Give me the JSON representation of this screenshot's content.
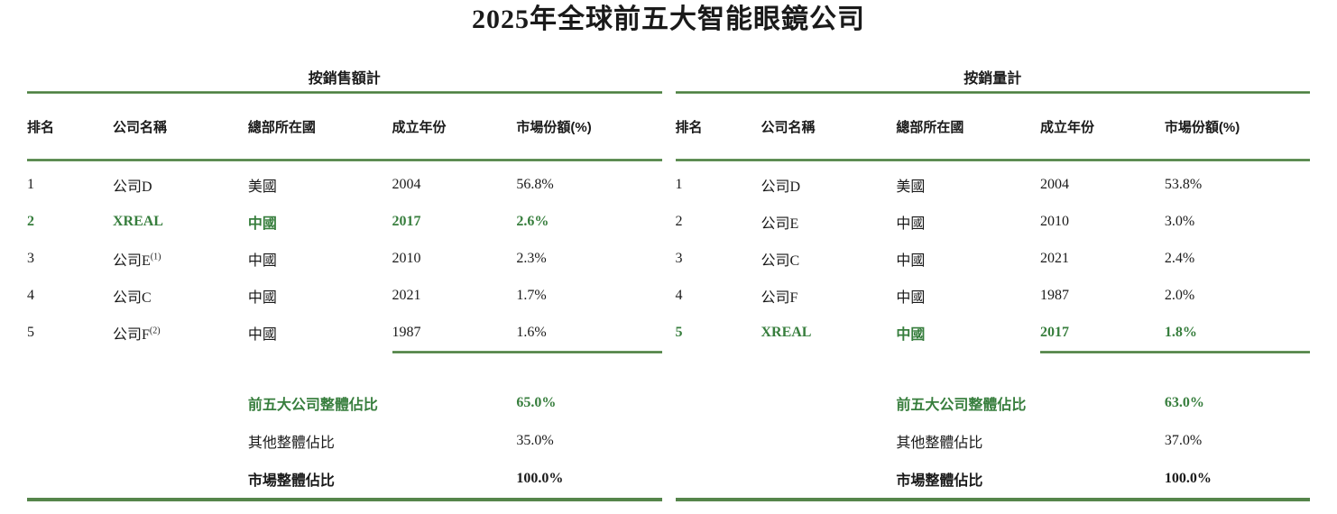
{
  "page": {
    "title": "2025年全球前五大智能眼鏡公司"
  },
  "colors": {
    "highlight_green": "#377e3d",
    "line_green": "#55854b"
  },
  "tables": [
    {
      "caption": "按銷售額計",
      "headers": {
        "rank": "排名",
        "company": "公司名稱",
        "country": "總部所在國",
        "year": "成立年份",
        "share": "市場份額(%)"
      },
      "rows": [
        {
          "rank": "1",
          "company": "公司D",
          "company_sup": "",
          "country": "美國",
          "year": "2004",
          "share": "56.8%"
        },
        {
          "rank": "2",
          "company": "XREAL",
          "company_sup": "",
          "country": "中國",
          "year": "2017",
          "share": "2.6%"
        },
        {
          "rank": "3",
          "company": "公司E",
          "company_sup": "(1)",
          "country": "中國",
          "year": "2010",
          "share": "2.3%"
        },
        {
          "rank": "4",
          "company": "公司C",
          "company_sup": "",
          "country": "中國",
          "year": "2021",
          "share": "1.7%"
        },
        {
          "rank": "5",
          "company": "公司F",
          "company_sup": "(2)",
          "country": "中國",
          "year": "1987",
          "share": "1.6%"
        }
      ],
      "summary": [
        {
          "label": "前五大公司整體佔比",
          "value": "65.0%"
        },
        {
          "label": "其他整體佔比",
          "value": "35.0%"
        },
        {
          "label": "市場整體佔比",
          "value": "100.0%"
        }
      ]
    },
    {
      "caption": "按銷量計",
      "headers": {
        "rank": "排名",
        "company": "公司名稱",
        "country": "總部所在國",
        "year": "成立年份",
        "share": "市場份額(%)"
      },
      "rows": [
        {
          "rank": "1",
          "company": "公司D",
          "company_sup": "",
          "country": "美國",
          "year": "2004",
          "share": "53.8%"
        },
        {
          "rank": "2",
          "company": "公司E",
          "company_sup": "",
          "country": "中國",
          "year": "2010",
          "share": "3.0%"
        },
        {
          "rank": "3",
          "company": "公司C",
          "company_sup": "",
          "country": "中國",
          "year": "2021",
          "share": "2.4%"
        },
        {
          "rank": "4",
          "company": "公司F",
          "company_sup": "",
          "country": "中國",
          "year": "1987",
          "share": "2.0%"
        },
        {
          "rank": "5",
          "company": "XREAL",
          "company_sup": "",
          "country": "中國",
          "year": "2017",
          "share": "1.8%"
        }
      ],
      "summary": [
        {
          "label": "前五大公司整體佔比",
          "value": "63.0%"
        },
        {
          "label": "其他整體佔比",
          "value": "37.0%"
        },
        {
          "label": "市場整體佔比",
          "value": "100.0%"
        }
      ]
    }
  ]
}
